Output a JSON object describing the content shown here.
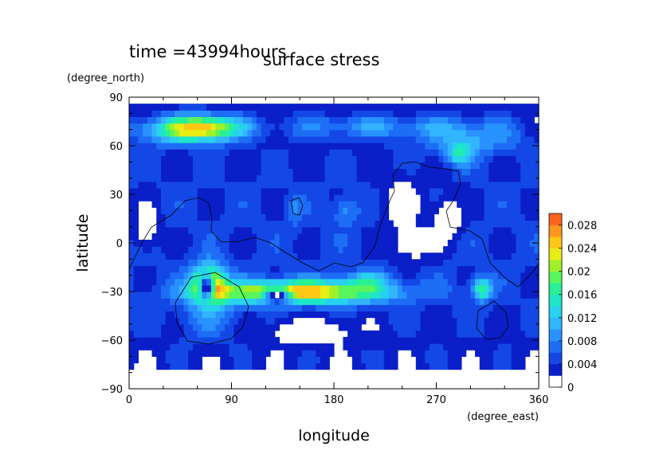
{
  "chart_data": {
    "type": "heatmap",
    "time_label": "time =43994hours",
    "title": "surface stress",
    "xlabel": "longitude",
    "ylabel": "latitude",
    "x_units": "(degree_east)",
    "y_units": "(degree_north)",
    "xlim": [
      0,
      360
    ],
    "ylim": [
      -90,
      90
    ],
    "x_ticks": [
      0,
      90,
      180,
      270,
      360
    ],
    "y_ticks": [
      -90,
      -60,
      -30,
      0,
      30,
      60,
      90
    ],
    "x_tick_labels": [
      "0",
      "90",
      "180",
      "270",
      "360"
    ],
    "y_tick_labels": [
      "−90",
      "−60",
      "−30",
      "0",
      "30",
      "60",
      "90"
    ],
    "colorbar": {
      "min": 0,
      "max": 0.03,
      "tick_labels": [
        "0",
        "0.004",
        "0.008",
        "0.012",
        "0.016",
        "0.02",
        "0.024",
        "0.028"
      ],
      "tick_values": [
        0,
        0.004,
        0.008,
        0.012,
        0.016,
        0.02,
        0.024,
        0.028
      ],
      "levels": [
        0,
        0.002,
        0.004,
        0.006,
        0.008,
        0.01,
        0.012,
        0.014,
        0.016,
        0.018,
        0.02,
        0.022,
        0.024,
        0.026,
        0.028,
        0.03
      ],
      "colors": [
        "#ffffff",
        "#0a1fc8",
        "#1448e6",
        "#1e6ef5",
        "#2892ff",
        "#32b4ff",
        "#28d2ee",
        "#1ee6c8",
        "#28f096",
        "#5af55a",
        "#a0f028",
        "#e6ee14",
        "#ffc814",
        "#ff961e",
        "#ff641e",
        "#f03214"
      ]
    },
    "grid": false,
    "background_value": 0.0045,
    "features": [
      {
        "lon": 50,
        "lat": 70,
        "value": 0.014,
        "slon": 30,
        "slat": 6
      },
      {
        "lon": 70,
        "lat": 72,
        "value": 0.012,
        "slon": 20,
        "slat": 5
      },
      {
        "lon": 210,
        "lat": 72,
        "value": 0.006,
        "slon": 55,
        "slat": 5
      },
      {
        "lon": 300,
        "lat": 65,
        "value": 0.007,
        "slon": 30,
        "slat": 8
      },
      {
        "lon": 290,
        "lat": 55,
        "value": 0.009,
        "slon": 8,
        "slat": 5
      },
      {
        "lon": 190,
        "lat": 20,
        "value": 0.005,
        "slon": 8,
        "slat": 6
      },
      {
        "lon": 145,
        "lat": 20,
        "value": 0.004,
        "slon": 5,
        "slat": 6
      },
      {
        "lon": 70,
        "lat": -25,
        "value": 0.026,
        "slon": 10,
        "slat": 8
      },
      {
        "lon": 150,
        "lat": -30,
        "value": 0.022,
        "slon": 55,
        "slat": 5
      },
      {
        "lon": 210,
        "lat": -22,
        "value": 0.006,
        "slon": 15,
        "slat": 4
      },
      {
        "lon": 310,
        "lat": -28,
        "value": 0.014,
        "slon": 6,
        "slat": 5
      },
      {
        "lon": 70,
        "lat": -45,
        "value": 0.004,
        "slon": 20,
        "slat": 10
      }
    ],
    "zero_regions": [
      {
        "lon": 68,
        "lat": -27,
        "slon": 5,
        "slat": 6
      },
      {
        "lon": 130,
        "lat": -33,
        "slon": 8,
        "slat": 3
      },
      {
        "lon": 240,
        "lat": 25,
        "slon": 12,
        "slat": 12
      },
      {
        "lon": 250,
        "lat": 0,
        "slon": 15,
        "slat": 8
      },
      {
        "lon": 160,
        "lat": -55,
        "slon": 30,
        "slat": 6
      },
      {
        "lon": 15,
        "lat": 10,
        "slon": 8,
        "slat": 10
      },
      {
        "lon": 280,
        "lat": 15,
        "slon": 10,
        "slat": 10
      }
    ]
  }
}
